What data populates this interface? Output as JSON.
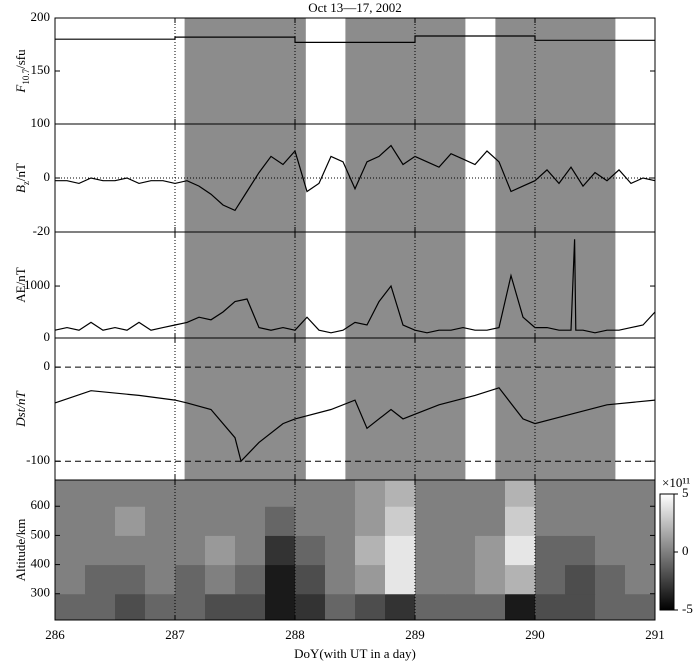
{
  "chart_data": [
    {
      "type": "line",
      "title": "Oct 13—17, 2002",
      "ylabel": [
        "F",
        "10.7",
        "/sfu"
      ],
      "ylim": [
        100,
        200
      ],
      "yticks": [
        100,
        150,
        200
      ],
      "grid": false,
      "color": "#000000",
      "x": [
        286,
        287,
        287,
        288,
        288,
        289,
        289,
        290,
        290,
        291
      ],
      "values": [
        180,
        180,
        182,
        182,
        177,
        177,
        183,
        183,
        179,
        179
      ],
      "shaded": [
        [
          287.08,
          288.09
        ],
        [
          288.42,
          289.42
        ],
        [
          289.67,
          290.67
        ]
      ],
      "shade_color": "#8c8c8c"
    },
    {
      "type": "line",
      "ylabel": [
        "B",
        "z",
        "/nT"
      ],
      "ylim": [
        -20,
        20
      ],
      "yticks": [
        -20,
        0
      ],
      "grid": "dotted",
      "color": "#000000",
      "x": [
        286.0,
        286.1,
        286.2,
        286.3,
        286.4,
        286.5,
        286.6,
        286.7,
        286.8,
        286.9,
        287.0,
        287.1,
        287.2,
        287.3,
        287.4,
        287.5,
        287.6,
        287.7,
        287.8,
        287.9,
        288.0,
        288.1,
        288.2,
        288.3,
        288.4,
        288.5,
        288.6,
        288.7,
        288.8,
        288.9,
        289.0,
        289.1,
        289.2,
        289.3,
        289.4,
        289.5,
        289.6,
        289.7,
        289.8,
        289.9,
        290.0,
        290.1,
        290.2,
        290.3,
        290.4,
        290.5,
        290.6,
        290.7,
        290.8,
        290.9,
        291.0
      ],
      "values": [
        -1,
        -1,
        -2,
        0,
        -1,
        -1,
        0,
        -2,
        -1,
        -1,
        -2,
        -1,
        -3,
        -6,
        -10,
        -12,
        -5,
        2,
        8,
        5,
        10,
        -5,
        -2,
        8,
        6,
        -4,
        6,
        8,
        12,
        5,
        8,
        6,
        4,
        9,
        7,
        5,
        10,
        6,
        -5,
        -3,
        -1,
        3,
        -2,
        4,
        -3,
        2,
        -1,
        3,
        -2,
        0,
        -1
      ]
    },
    {
      "type": "line",
      "ylabel": [
        "AE/nT"
      ],
      "ylim": [
        0,
        2040
      ],
      "yticks": [
        0,
        1000
      ],
      "grid": false,
      "color": "#000000",
      "x": [
        286.0,
        286.1,
        286.2,
        286.3,
        286.4,
        286.5,
        286.6,
        286.7,
        286.8,
        286.9,
        287.0,
        287.1,
        287.2,
        287.3,
        287.4,
        287.5,
        287.6,
        287.7,
        287.8,
        287.9,
        288.0,
        288.1,
        288.2,
        288.3,
        288.4,
        288.5,
        288.6,
        288.7,
        288.8,
        288.9,
        289.0,
        289.1,
        289.2,
        289.3,
        289.4,
        289.5,
        289.6,
        289.7,
        289.8,
        289.9,
        290.0,
        290.1,
        290.2,
        290.3,
        290.33,
        290.34,
        290.4,
        290.5,
        290.6,
        290.7,
        290.8,
        290.9,
        291.0
      ],
      "values": [
        150,
        200,
        150,
        300,
        150,
        200,
        150,
        300,
        150,
        200,
        250,
        300,
        400,
        350,
        500,
        700,
        750,
        200,
        150,
        200,
        150,
        400,
        150,
        100,
        150,
        300,
        250,
        700,
        1000,
        250,
        150,
        100,
        150,
        150,
        200,
        150,
        150,
        200,
        1200,
        400,
        200,
        200,
        150,
        150,
        1900,
        150,
        150,
        100,
        150,
        150,
        200,
        250,
        500
      ]
    },
    {
      "type": "line",
      "ylabel": [
        "Dst/nT"
      ],
      "ylim": [
        -120,
        31
      ],
      "yticks": [
        -100,
        0
      ],
      "grid": "dashed",
      "color": "#000000",
      "x": [
        286.0,
        286.3,
        286.7,
        287.0,
        287.1,
        287.3,
        287.5,
        287.55,
        287.7,
        287.9,
        288.0,
        288.3,
        288.5,
        288.6,
        288.8,
        288.9,
        289.0,
        289.2,
        289.5,
        289.7,
        289.9,
        290.0,
        290.3,
        290.6,
        291.0
      ],
      "values": [
        -38,
        -25,
        -30,
        -35,
        -38,
        -45,
        -75,
        -100,
        -80,
        -60,
        -55,
        -45,
        -35,
        -65,
        -45,
        -55,
        -50,
        -40,
        -30,
        -22,
        -55,
        -60,
        -50,
        -40,
        -35
      ]
    },
    {
      "type": "heatmap",
      "ylabel": [
        "Altitude/km"
      ],
      "ylim": [
        210,
        690
      ],
      "yticks": [
        300,
        400,
        500,
        600
      ],
      "xlim": [
        286,
        291
      ],
      "xticks": [
        286,
        287,
        288,
        289,
        290,
        291
      ],
      "xlabel": "DoY(with UT in a day)",
      "x_edges": [
        286,
        286.25,
        286.5,
        286.75,
        287,
        287.25,
        287.5,
        287.75,
        288,
        288.25,
        288.5,
        288.75,
        289,
        289.25,
        289.5,
        289.75,
        290,
        290.25,
        290.5,
        290.75,
        291
      ],
      "y_edges": [
        210,
        300,
        400,
        500,
        600,
        690
      ],
      "z": [
        [
          -1,
          -1,
          -2,
          -1,
          -1,
          -2,
          -2,
          -4,
          -3,
          -1,
          -2,
          -3,
          -1,
          -1,
          -1,
          -4,
          -2,
          -2,
          -1,
          -1
        ],
        [
          0,
          -1,
          -1,
          0,
          -1,
          0,
          -1,
          -4,
          -2,
          0,
          1,
          4,
          0,
          0,
          1,
          2,
          -1,
          -2,
          -1,
          0
        ],
        [
          0,
          0,
          0,
          0,
          0,
          1,
          0,
          -3,
          -1,
          0,
          2,
          4,
          0,
          0,
          1,
          4,
          -1,
          -1,
          0,
          0
        ],
        [
          0,
          0,
          1,
          0,
          0,
          0,
          0,
          -1,
          0,
          0,
          1,
          3,
          0,
          0,
          0,
          3,
          0,
          0,
          0,
          0
        ],
        [
          0,
          0,
          0,
          0,
          0,
          0,
          0,
          0,
          0,
          0,
          1,
          2,
          0,
          0,
          0,
          2,
          0,
          0,
          0,
          0
        ]
      ],
      "zlim": [
        -5,
        5
      ],
      "zticks": [
        5,
        0,
        -5
      ],
      "colorbar_label": "×10¹¹"
    }
  ]
}
